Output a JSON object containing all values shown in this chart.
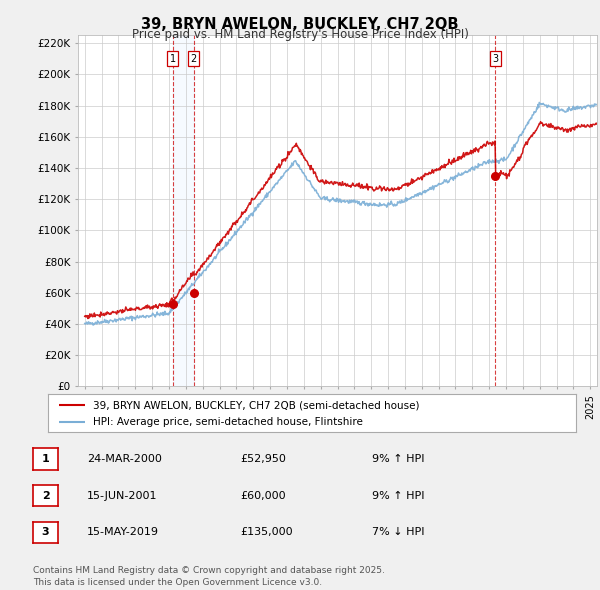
{
  "title": "39, BRYN AWELON, BUCKLEY, CH7 2QB",
  "subtitle": "Price paid vs. HM Land Registry's House Price Index (HPI)",
  "red_label": "39, BRYN AWELON, BUCKLEY, CH7 2QB (semi-detached house)",
  "blue_label": "HPI: Average price, semi-detached house, Flintshire",
  "transactions": [
    {
      "num": 1,
      "date": "24-MAR-2000",
      "price": 52950,
      "pct": "9%",
      "dir": "↑",
      "x_year": 2000.23
    },
    {
      "num": 2,
      "date": "15-JUN-2001",
      "price": 60000,
      "pct": "9%",
      "dir": "↑",
      "x_year": 2001.46
    },
    {
      "num": 3,
      "date": "15-MAY-2019",
      "price": 135000,
      "pct": "7%",
      "dir": "↓",
      "x_year": 2019.37
    }
  ],
  "footer": "Contains HM Land Registry data © Crown copyright and database right 2025.\nThis data is licensed under the Open Government Licence v3.0.",
  "ylim": [
    0,
    225000
  ],
  "yticks": [
    0,
    20000,
    40000,
    60000,
    80000,
    100000,
    120000,
    140000,
    160000,
    180000,
    200000,
    220000
  ],
  "xlim": [
    1994.6,
    2025.4
  ],
  "background_color": "#f0f0f0",
  "plot_bg_color": "#ffffff",
  "grid_color": "#cccccc",
  "red_color": "#cc0000",
  "blue_color": "#7aaed6",
  "shade_color": "#ddeeff"
}
